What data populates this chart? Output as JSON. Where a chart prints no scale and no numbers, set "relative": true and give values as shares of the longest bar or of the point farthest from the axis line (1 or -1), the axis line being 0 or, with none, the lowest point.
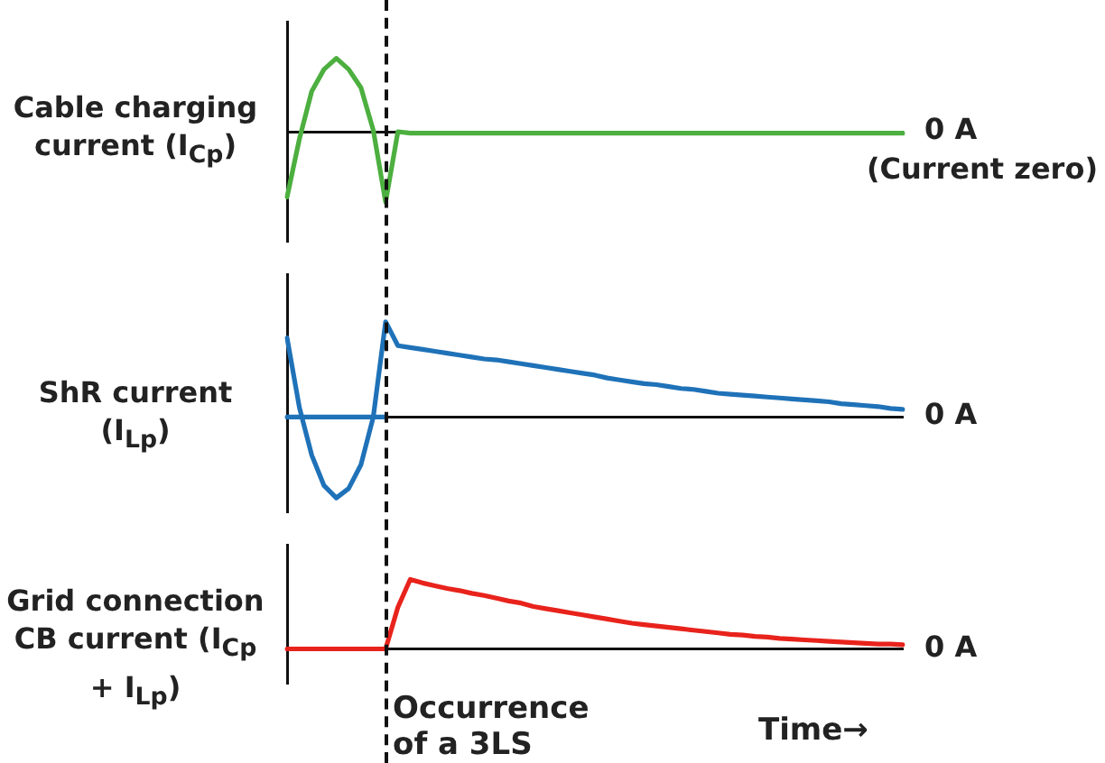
{
  "chart_data": [
    {
      "type": "line",
      "relative": true,
      "ylabel": "Cable charging current (I$_{Cp}$)",
      "categories": [
        null,
        null,
        null,
        null,
        null,
        null,
        null,
        null,
        null,
        null,
        null,
        null,
        null,
        null,
        null,
        null,
        null,
        null,
        null,
        null,
        null,
        null,
        null,
        null,
        null,
        null,
        null,
        null,
        null,
        null,
        null,
        null,
        null,
        null,
        null,
        null,
        null,
        null,
        null,
        null,
        null,
        null,
        null,
        null,
        null,
        null,
        null,
        null,
        null,
        null,
        null
      ],
      "grid": false,
      "legend": false,
      "annotations": [
        "0 A",
        "(Current zero)"
      ],
      "series": [
        {
          "color": "#4caf3f",
          "values": [
            -0.89,
            -0.1,
            0.55,
            0.85,
            1,
            0.85,
            0.6,
            0.02,
            -0.96,
            0,
            -0.02,
            -0.02,
            -0.02,
            -0.02,
            -0.02,
            -0.02,
            -0.02,
            -0.02,
            -0.02,
            -0.02,
            -0.02,
            -0.02,
            -0.02,
            -0.02,
            -0.02,
            -0.02,
            -0.02,
            -0.02,
            -0.02,
            -0.02,
            -0.02,
            -0.02,
            -0.02,
            -0.02,
            -0.02,
            -0.02,
            -0.02,
            -0.02,
            -0.02,
            -0.02,
            -0.02,
            -0.02,
            -0.02,
            -0.02,
            -0.02,
            -0.02,
            -0.02,
            -0.02,
            -0.02,
            -0.02,
            -0.02
          ]
        }
      ]
    },
    {
      "type": "line",
      "relative": true,
      "ylabel": "ShR current (I$_{Lp}$)",
      "categories": [
        null,
        null,
        null,
        null,
        null,
        null,
        null,
        null,
        null,
        null,
        null,
        null,
        null,
        null,
        null,
        null,
        null,
        null,
        null,
        null,
        null,
        null,
        null,
        null,
        null,
        null,
        null,
        null,
        null,
        null,
        null,
        null,
        null,
        null,
        null,
        null,
        null,
        null,
        null,
        null,
        null,
        null,
        null,
        null,
        null,
        null,
        null,
        null,
        null,
        null,
        null
      ],
      "grid": false,
      "legend": false,
      "annotations": [
        "0 A"
      ],
      "series": [
        {
          "color": "#1f72b8",
          "values": [
            0.83,
            0.1,
            -0.4,
            -0.72,
            -0.85,
            -0.75,
            -0.5,
            0,
            1,
            0.75,
            0.73,
            0.71,
            0.69,
            0.67,
            0.65,
            0.63,
            0.61,
            0.6,
            0.58,
            0.56,
            0.54,
            0.52,
            0.5,
            0.48,
            0.46,
            0.44,
            0.41,
            0.39,
            0.37,
            0.35,
            0.34,
            0.32,
            0.3,
            0.29,
            0.27,
            0.25,
            0.24,
            0.23,
            0.22,
            0.21,
            0.2,
            0.19,
            0.18,
            0.17,
            0.16,
            0.14,
            0.13,
            0.12,
            0.11,
            0.09,
            0.08
          ]
        },
        {
          "color": "#1f72b8",
          "values": [
            0,
            0,
            0,
            0,
            0,
            0,
            0,
            0,
            0,
            null,
            null,
            null,
            null,
            null,
            null,
            null,
            null,
            null,
            null,
            null,
            null,
            null,
            null,
            null,
            null,
            null,
            null,
            null,
            null,
            null,
            null,
            null,
            null,
            null,
            null,
            null,
            null,
            null,
            null,
            null,
            null,
            null,
            null,
            null,
            null,
            null,
            null,
            null,
            null,
            null,
            null
          ]
        }
      ]
    },
    {
      "type": "line",
      "relative": true,
      "ylabel": "Grid connection CB current (I$_{Cp}$ + I$_{Lp}$)",
      "xlabel": "Time→",
      "categories": [
        null,
        null,
        null,
        null,
        null,
        null,
        null,
        null,
        null,
        null,
        null,
        null,
        null,
        null,
        null,
        null,
        null,
        null,
        null,
        null,
        null,
        null,
        null,
        null,
        null,
        null,
        null,
        null,
        null,
        null,
        null,
        null,
        null,
        null,
        null,
        null,
        null,
        null,
        null,
        null,
        null,
        null,
        null,
        null,
        null,
        null,
        null,
        null,
        null,
        null,
        null
      ],
      "grid": false,
      "legend": false,
      "annotations": [
        "0 A",
        "Occurrence of a 3LS"
      ],
      "series": [
        {
          "color": "#e8231c",
          "values": [
            0,
            0,
            0,
            0,
            0,
            0,
            0,
            0,
            0,
            0.6,
            1,
            0.95,
            0.91,
            0.87,
            0.84,
            0.8,
            0.77,
            0.73,
            0.69,
            0.66,
            0.61,
            0.58,
            0.55,
            0.52,
            0.49,
            0.46,
            0.43,
            0.4,
            0.37,
            0.35,
            0.33,
            0.31,
            0.29,
            0.27,
            0.25,
            0.23,
            0.21,
            0.2,
            0.18,
            0.17,
            0.15,
            0.14,
            0.13,
            0.12,
            0.11,
            0.1,
            0.09,
            0.08,
            0.07,
            0.07,
            0.06
          ]
        }
      ]
    }
  ]
}
